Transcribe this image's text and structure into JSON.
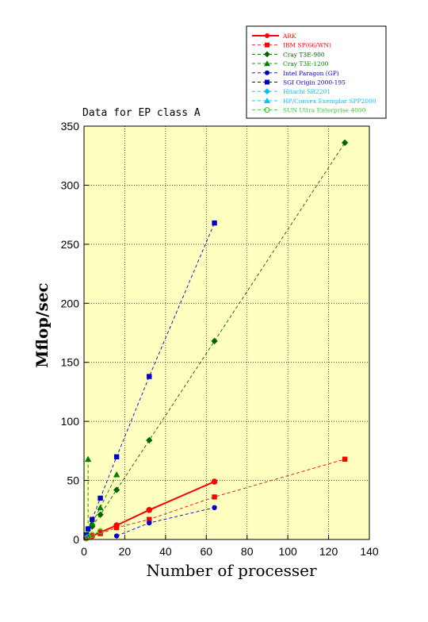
{
  "chart_data": {
    "type": "line",
    "title": "Data for EP class A",
    "xlabel": "Number of processer",
    "ylabel": "Mflop/sec",
    "xlim": [
      0,
      140
    ],
    "ylim": [
      0,
      350
    ],
    "xticks": [
      0,
      20,
      40,
      60,
      80,
      100,
      120,
      140
    ],
    "yticks": [
      0,
      50,
      100,
      150,
      200,
      250,
      300,
      350
    ],
    "grid": true,
    "legend_position": "top-right",
    "plot_background": "#ffffc0",
    "series": [
      {
        "name": "ARK",
        "color": "#ff0000",
        "marker": "circle",
        "line": "solid",
        "x": [
          1,
          2,
          4,
          8,
          16,
          32,
          64
        ],
        "y": [
          1,
          2,
          3,
          6,
          12,
          25,
          49
        ]
      },
      {
        "name": "IBM SP(66/WN)",
        "color": "#ff0000",
        "marker": "square",
        "line": "dashed",
        "x": [
          8,
          16,
          32,
          64,
          128
        ],
        "y": [
          5,
          10,
          17,
          36,
          68
        ]
      },
      {
        "name": "Cray T3E-900",
        "color": "#006400",
        "marker": "diamond",
        "line": "dashed",
        "x": [
          4,
          8,
          16,
          32,
          64,
          128
        ],
        "y": [
          11,
          21,
          42,
          84,
          168,
          336
        ]
      },
      {
        "name": "Cray T3E-1200",
        "color": "#008000",
        "marker": "triangle",
        "line": "dashed",
        "x": [
          2,
          2,
          4,
          8,
          16
        ],
        "y": [
          68,
          4,
          14,
          27,
          55
        ]
      },
      {
        "name": "Intel Paragon (GP)",
        "color": "#0000cc",
        "marker": "circle",
        "line": "dashed",
        "x": [
          16,
          32,
          64
        ],
        "y": [
          3,
          14,
          27
        ]
      },
      {
        "name": "SGI Origin 2000-195",
        "color": "#0000cc",
        "marker": "square",
        "line": "dashed",
        "x": [
          1,
          2,
          4,
          8,
          16,
          32,
          64
        ],
        "y": [
          4,
          9,
          17,
          35,
          70,
          138,
          268
        ]
      },
      {
        "name": "Hitachi SR2201",
        "color": "#00bfff",
        "marker": "diamond",
        "line": "dashed",
        "x": [],
        "y": []
      },
      {
        "name": "HP/Convex Exemplar SPP2000",
        "color": "#00bfff",
        "marker": "triangle",
        "line": "dashed",
        "x": [],
        "y": []
      },
      {
        "name": "SUN Ultra Enterprise 4000",
        "color": "#33cc33",
        "marker": "circle-open",
        "line": "dashed",
        "x": [
          1,
          2,
          4,
          8
        ],
        "y": [
          1,
          2,
          4,
          7
        ]
      }
    ]
  }
}
